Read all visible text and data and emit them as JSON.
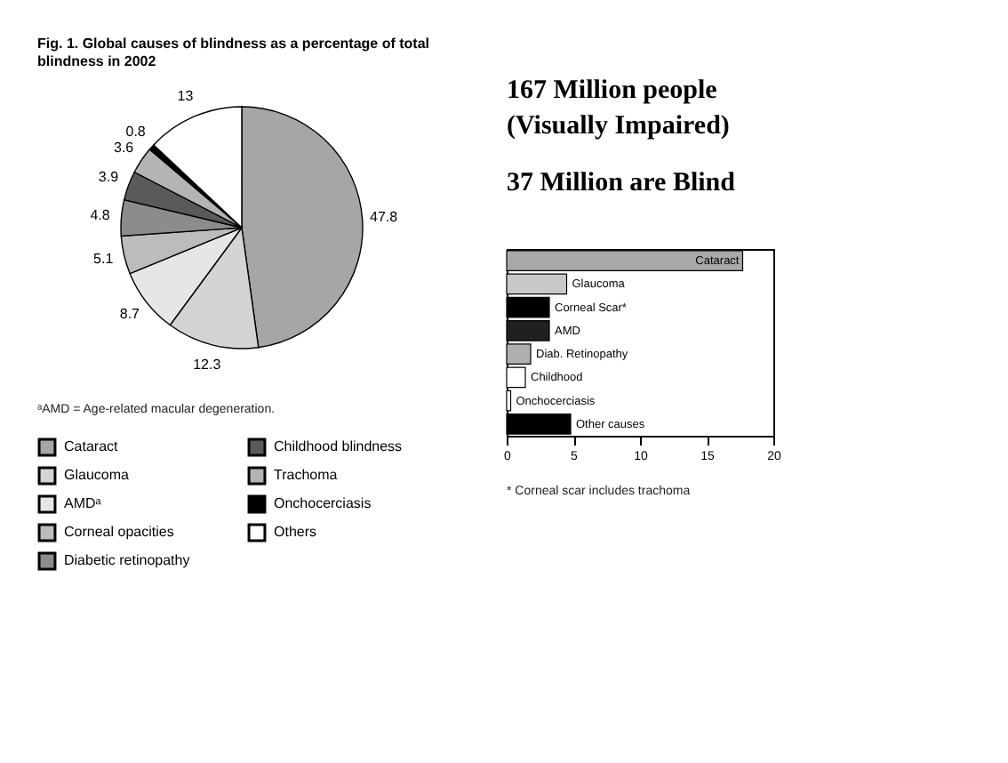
{
  "chart_data": [
    {
      "type": "pie",
      "title": "Fig. 1. Global causes of blindness as a percentage of total blindness in 2002",
      "categories": [
        "Cataract",
        "Glaucoma",
        "AMDᵃ",
        "Corneal opacities",
        "Diabetic retinopathy",
        "Childhood blindness",
        "Trachoma",
        "Onchocerciasis",
        "Others"
      ],
      "values": [
        47.8,
        12.3,
        8.7,
        5.1,
        4.8,
        3.9,
        3.6,
        0.8,
        13
      ],
      "colors": [
        "#a6a6a6",
        "#d4d4d4",
        "#e6e6e6",
        "#bcbcbc",
        "#8c8c8c",
        "#5a5a5a",
        "#b4b4b4",
        "#000000",
        "#ffffff"
      ],
      "data_labels": true,
      "legend": "bottom",
      "annotations": [
        "ᵃAMD = Age-related macular degeneration."
      ]
    },
    {
      "type": "other",
      "annotations": [
        "167 Million people",
        "(Visually Impaired)",
        "37 Million are Blind"
      ]
    },
    {
      "type": "bar",
      "orientation": "horizontal",
      "categories": [
        "Cataract",
        "Glaucoma",
        "Corneal Scar*",
        "AMD",
        "Diab. Retinopathy",
        "Childhood",
        "Onchocerciasis",
        "Other causes"
      ],
      "values": [
        17.7,
        4.5,
        3.2,
        3.2,
        1.8,
        1.4,
        0.3,
        4.8
      ],
      "colors": [
        "#a8a8a8",
        "#c8c8c8",
        "#000000",
        "#202020",
        "#b0b0b0",
        "#ffffff",
        "#ffffff",
        "#000000"
      ],
      "xlim": [
        0,
        20
      ],
      "xticks": [
        0,
        5,
        10,
        15,
        20
      ],
      "tick_labels": "x",
      "annotations": [
        "* Corneal scar includes trachoma"
      ]
    }
  ]
}
